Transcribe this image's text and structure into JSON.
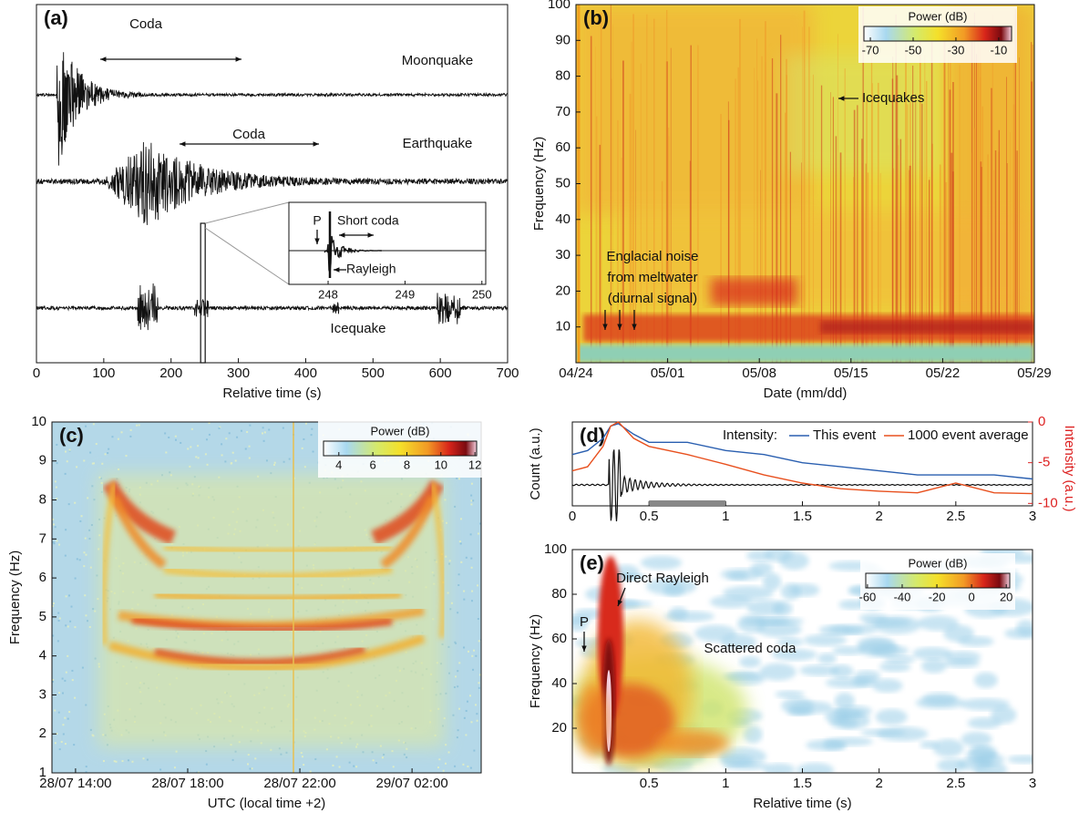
{
  "chart_data": [
    {
      "type": "waveform",
      "label": "(a)",
      "xlabel": "Relative time (s)",
      "xlim": [
        0,
        700
      ],
      "xticks": [
        0,
        100,
        200,
        300,
        400,
        500,
        600,
        700
      ],
      "annotations": [
        "Coda",
        "Moonquake",
        "Coda",
        "Earthquake",
        "Icequake",
        "P",
        "Short coda",
        "Rayleigh"
      ],
      "inset_xlim": [
        247.49,
        250.05
      ],
      "inset_xticks": [
        248,
        249,
        250
      ]
    },
    {
      "type": "heatmap",
      "label": "(b)",
      "ylabel": "Frequency (Hz)",
      "xlabel": "Date (mm/dd)",
      "xticks": [
        "04/24",
        "05/01",
        "05/08",
        "05/15",
        "05/22",
        "05/29"
      ],
      "ylim": [
        0,
        100
      ],
      "yticks": [
        10,
        20,
        30,
        40,
        50,
        60,
        70,
        80,
        90,
        100
      ],
      "annotations": [
        "Icequakes",
        "Englacial noise",
        "from meltwater",
        "(diurnal signal)"
      ],
      "colorbar": {
        "label": "Power (dB)",
        "lim": [
          -73,
          -4
        ],
        "ticks": [
          -70,
          -50,
          -30,
          -10
        ]
      }
    },
    {
      "type": "heatmap",
      "label": "(c)",
      "ylabel": "Frequency (Hz)",
      "xlabel": "UTC (local time +2)",
      "xticks": [
        "28/07 14:00",
        "28/07 18:00",
        "28/07 22:00",
        "29/07 02:00"
      ],
      "ylim": [
        1,
        10
      ],
      "yticks": [
        1,
        2,
        3,
        4,
        5,
        6,
        7,
        8,
        9,
        10
      ],
      "colorbar": {
        "label": "Power (dB)",
        "lim": [
          3.1,
          12.1
        ],
        "ticks": [
          4,
          6,
          8,
          10,
          12
        ]
      }
    },
    {
      "type": "line",
      "label": "(d)",
      "ylabel": "Count (a.u.)",
      "y2label": "Intensity (a.u.)",
      "xlim": [
        0,
        3
      ],
      "xticks": [
        0,
        0.5,
        1,
        1.5,
        2,
        2.5,
        3
      ],
      "y2lim": [
        -10.3,
        0
      ],
      "y2ticks": [
        0,
        -5,
        -10
      ],
      "legend_title": "Intensity:",
      "x": [
        0,
        0.1,
        0.2,
        0.25,
        0.3,
        0.4,
        0.5,
        0.75,
        1,
        1.25,
        1.5,
        1.75,
        2,
        2.25,
        2.5,
        2.75,
        3
      ],
      "series": [
        {
          "name": "This event",
          "color": "#2a5fb0",
          "axis": "y2",
          "values": [
            -4,
            -3.5,
            -2,
            -0.5,
            -0.2,
            -1.5,
            -2.5,
            -2.5,
            -3.5,
            -4,
            -5,
            -5.5,
            -6,
            -6.5,
            -6.5,
            -6.5,
            -7
          ]
        },
        {
          "name": "1000 event average",
          "color": "#e8501e",
          "axis": "y2",
          "values": [
            -6,
            -5.5,
            -3,
            -0.5,
            0,
            -2,
            -3,
            -4,
            -5.2,
            -6.5,
            -7.5,
            -8.2,
            -8.5,
            -8.7,
            -7.5,
            -8.7,
            -8.8
          ]
        }
      ]
    },
    {
      "type": "heatmap",
      "label": "(e)",
      "ylabel": "Frequency (Hz)",
      "xlabel": "Relative time (s)",
      "xlim": [
        0,
        3
      ],
      "xticks": [
        0.5,
        1,
        1.5,
        2,
        2.5,
        3
      ],
      "ylim": [
        0,
        100
      ],
      "yticks": [
        20,
        40,
        60,
        80,
        100
      ],
      "annotations": [
        "P",
        "Direct Rayleigh",
        "Scattered coda"
      ],
      "colorbar": {
        "label": "Power (dB)",
        "lim": [
          -61,
          22
        ],
        "ticks": [
          -60,
          -40,
          -20,
          0,
          20
        ]
      }
    }
  ]
}
